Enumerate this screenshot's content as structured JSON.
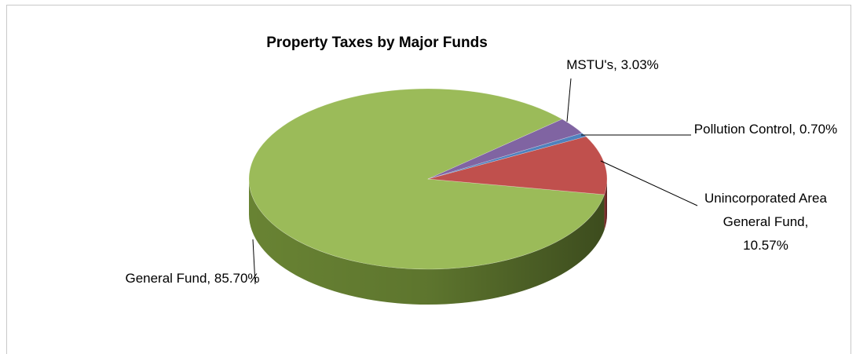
{
  "chart_data": {
    "type": "pie",
    "title": "Property Taxes by Major Funds",
    "values": [
      85.7,
      10.57,
      0.7,
      3.03
    ],
    "value_labels": [
      "General Fund, 85.70%",
      "Unincorporated Area General Fund, 10.57%",
      "Pollution Control, 0.70%",
      "MSTU's, 3.03%"
    ],
    "colors": [
      "#9bbb59",
      "#c0504d",
      "#4f81bd",
      "#8064a2"
    ],
    "side_colors": [
      "#6e8a36",
      "#8c3432",
      "#36598a",
      "#5b4577"
    ]
  }
}
